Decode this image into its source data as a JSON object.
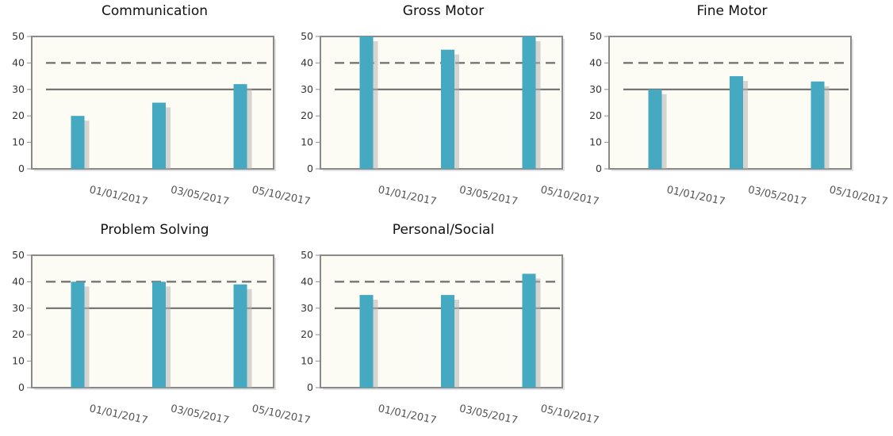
{
  "styles": {
    "bar_color": "#45a9c1",
    "bar_shadow_color": "#b5b5b5",
    "plot_background": "#fcfbf4",
    "plot_border": "#8a8a8a",
    "reference_line_color": "#6e6e6e",
    "text_color": "#333333"
  },
  "chart_data": [
    {
      "type": "bar",
      "title": "Communication",
      "categories": [
        "01/01/2017",
        "03/05/2017",
        "05/10/2017"
      ],
      "values": [
        20,
        25,
        32
      ],
      "ylim": [
        0,
        50
      ],
      "yticks": [
        0,
        10,
        20,
        30,
        40,
        50
      ],
      "reference_lines": [
        {
          "y": 40,
          "style": "dashed"
        },
        {
          "y": 30,
          "style": "solid"
        }
      ],
      "grid": false,
      "legend": "none"
    },
    {
      "type": "bar",
      "title": "Gross Motor",
      "categories": [
        "01/01/2017",
        "03/05/2017",
        "05/10/2017"
      ],
      "values": [
        50,
        45,
        50
      ],
      "ylim": [
        0,
        50
      ],
      "yticks": [
        0,
        10,
        20,
        30,
        40,
        50
      ],
      "reference_lines": [
        {
          "y": 40,
          "style": "dashed"
        },
        {
          "y": 30,
          "style": "solid"
        }
      ],
      "grid": false,
      "legend": "none"
    },
    {
      "type": "bar",
      "title": "Fine Motor",
      "categories": [
        "01/01/2017",
        "03/05/2017",
        "05/10/2017"
      ],
      "values": [
        30,
        35,
        33
      ],
      "ylim": [
        0,
        50
      ],
      "yticks": [
        0,
        10,
        20,
        30,
        40,
        50
      ],
      "reference_lines": [
        {
          "y": 40,
          "style": "dashed"
        },
        {
          "y": 30,
          "style": "solid"
        }
      ],
      "grid": false,
      "legend": "none"
    },
    {
      "type": "bar",
      "title": "Problem Solving",
      "categories": [
        "01/01/2017",
        "03/05/2017",
        "05/10/2017"
      ],
      "values": [
        40,
        40,
        39
      ],
      "ylim": [
        0,
        50
      ],
      "yticks": [
        0,
        10,
        20,
        30,
        40,
        50
      ],
      "reference_lines": [
        {
          "y": 40,
          "style": "dashed"
        },
        {
          "y": 30,
          "style": "solid"
        }
      ],
      "grid": false,
      "legend": "none"
    },
    {
      "type": "bar",
      "title": "Personal/Social",
      "categories": [
        "01/01/2017",
        "03/05/2017",
        "05/10/2017"
      ],
      "values": [
        35,
        35,
        43
      ],
      "ylim": [
        0,
        50
      ],
      "yticks": [
        0,
        10,
        20,
        30,
        40,
        50
      ],
      "reference_lines": [
        {
          "y": 40,
          "style": "dashed"
        },
        {
          "y": 30,
          "style": "solid"
        }
      ],
      "grid": false,
      "legend": "none"
    }
  ]
}
